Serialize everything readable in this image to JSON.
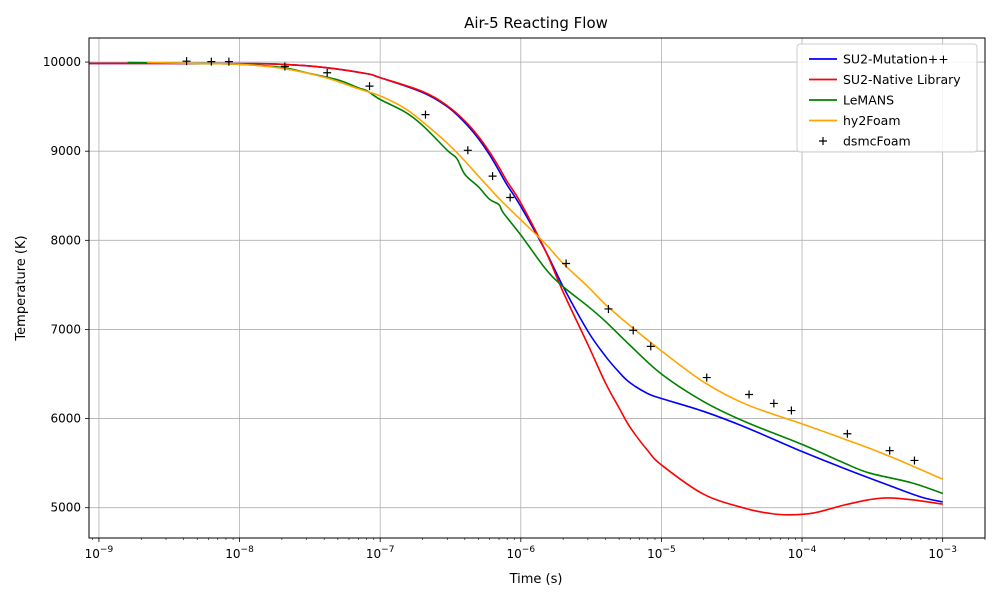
{
  "chart_data": {
    "type": "line",
    "title": "Air-5 Reacting Flow",
    "xlabel": "Time (s)",
    "ylabel": "Temperature (K)",
    "xscale": "log",
    "xlim": [
      8.5e-10,
      0.002
    ],
    "ylim": [
      4660,
      10270
    ],
    "x_ticks": [
      {
        "value": 1e-09,
        "base": "10",
        "exp": "−9"
      },
      {
        "value": 1e-08,
        "base": "10",
        "exp": "−8"
      },
      {
        "value": 1e-07,
        "base": "10",
        "exp": "−7"
      },
      {
        "value": 1e-06,
        "base": "10",
        "exp": "−6"
      },
      {
        "value": 1e-05,
        "base": "10",
        "exp": "−5"
      },
      {
        "value": 0.0001,
        "base": "10",
        "exp": "−4"
      },
      {
        "value": 0.001,
        "base": "10",
        "exp": "−3"
      }
    ],
    "y_ticks": [
      5000,
      6000,
      7000,
      8000,
      9000,
      10000
    ],
    "grid": true,
    "legend_position": "top-right",
    "series": [
      {
        "name": "SU2-Mutation++",
        "color": "#0000ff",
        "style": "line",
        "points": [
          [
            8.5e-10,
            9985
          ],
          [
            1e-08,
            9982
          ],
          [
            2e-08,
            9975
          ],
          [
            4e-08,
            9940
          ],
          [
            8e-08,
            9870
          ],
          [
            1e-07,
            9825
          ],
          [
            2e-07,
            9660
          ],
          [
            3e-07,
            9500
          ],
          [
            4e-07,
            9320
          ],
          [
            5e-07,
            9140
          ],
          [
            6e-07,
            8960
          ],
          [
            7e-07,
            8780
          ],
          [
            8e-07,
            8620
          ],
          [
            1e-06,
            8380
          ],
          [
            1.5e-06,
            7880
          ],
          [
            2e-06,
            7480
          ],
          [
            3e-06,
            6980
          ],
          [
            4e-06,
            6700
          ],
          [
            5e-06,
            6520
          ],
          [
            6e-06,
            6400
          ],
          [
            8e-06,
            6280
          ],
          [
            1e-05,
            6225
          ],
          [
            2e-05,
            6080
          ],
          [
            4e-05,
            5900
          ],
          [
            0.0001,
            5630
          ],
          [
            0.0002,
            5440
          ],
          [
            0.0004,
            5260
          ],
          [
            0.0007,
            5120
          ],
          [
            0.001,
            5065
          ]
        ]
      },
      {
        "name": "SU2-Native Library",
        "color": "#ff0000",
        "style": "line",
        "points": [
          [
            8.5e-10,
            9985
          ],
          [
            1e-08,
            9982
          ],
          [
            2e-08,
            9975
          ],
          [
            4e-08,
            9940
          ],
          [
            8e-08,
            9870
          ],
          [
            1e-07,
            9825
          ],
          [
            2e-07,
            9670
          ],
          [
            3e-07,
            9510
          ],
          [
            4e-07,
            9340
          ],
          [
            5e-07,
            9165
          ],
          [
            6e-07,
            8990
          ],
          [
            7e-07,
            8820
          ],
          [
            8e-07,
            8660
          ],
          [
            1e-06,
            8420
          ],
          [
            1.5e-06,
            7880
          ],
          [
            2e-06,
            7420
          ],
          [
            3e-06,
            6830
          ],
          [
            4e-06,
            6400
          ],
          [
            5e-06,
            6120
          ],
          [
            6e-06,
            5900
          ],
          [
            8e-06,
            5640
          ],
          [
            1e-05,
            5480
          ],
          [
            2e-05,
            5150
          ],
          [
            4e-05,
            4990
          ],
          [
            6e-05,
            4935
          ],
          [
            8e-05,
            4920
          ],
          [
            0.00012,
            4940
          ],
          [
            0.0002,
            5030
          ],
          [
            0.0003,
            5090
          ],
          [
            0.0004,
            5110
          ],
          [
            0.0006,
            5090
          ],
          [
            0.001,
            5040
          ]
        ]
      },
      {
        "name": "LeMANS",
        "color": "#008000",
        "style": "line",
        "points": [
          [
            1.6e-09,
            9995
          ],
          [
            5e-09,
            9985
          ],
          [
            1e-08,
            9975
          ],
          [
            2e-08,
            9940
          ],
          [
            3e-08,
            9880
          ],
          [
            5e-08,
            9800
          ],
          [
            7e-08,
            9710
          ],
          [
            8e-08,
            9680
          ],
          [
            1e-07,
            9580
          ],
          [
            1.5e-07,
            9440
          ],
          [
            2e-07,
            9290
          ],
          [
            3e-07,
            9010
          ],
          [
            3.5e-07,
            8920
          ],
          [
            4e-07,
            8740
          ],
          [
            5e-07,
            8600
          ],
          [
            6e-07,
            8460
          ],
          [
            7e-07,
            8400
          ],
          [
            7.5e-07,
            8310
          ],
          [
            1e-06,
            8060
          ],
          [
            1.5e-06,
            7680
          ],
          [
            2e-06,
            7480
          ],
          [
            3e-06,
            7260
          ],
          [
            4e-06,
            7090
          ],
          [
            6e-06,
            6820
          ],
          [
            1e-05,
            6500
          ],
          [
            2e-05,
            6190
          ],
          [
            4e-05,
            5960
          ],
          [
            0.0001,
            5710
          ],
          [
            0.0002,
            5500
          ],
          [
            0.0003,
            5390
          ],
          [
            0.0006,
            5280
          ],
          [
            0.001,
            5160
          ]
        ]
      },
      {
        "name": "hy2Foam",
        "color": "#ffa500",
        "style": "line",
        "points": [
          [
            2.2e-09,
            9995
          ],
          [
            5e-09,
            9985
          ],
          [
            1e-08,
            9975
          ],
          [
            2e-08,
            9930
          ],
          [
            4e-08,
            9830
          ],
          [
            7e-08,
            9700
          ],
          [
            1e-07,
            9620
          ],
          [
            1.5e-07,
            9480
          ],
          [
            2e-07,
            9330
          ],
          [
            3e-07,
            9090
          ],
          [
            4e-07,
            8890
          ],
          [
            5e-07,
            8720
          ],
          [
            7e-07,
            8470
          ],
          [
            1e-06,
            8230
          ],
          [
            1.5e-06,
            7960
          ],
          [
            2e-06,
            7740
          ],
          [
            3e-06,
            7480
          ],
          [
            4e-06,
            7280
          ],
          [
            6e-06,
            7040
          ],
          [
            1e-05,
            6760
          ],
          [
            2e-05,
            6410
          ],
          [
            4e-05,
            6160
          ],
          [
            0.0001,
            5940
          ],
          [
            0.0002,
            5770
          ],
          [
            0.0004,
            5590
          ],
          [
            0.001,
            5320
          ]
        ]
      },
      {
        "name": "dsmcFoam",
        "color": "#000000",
        "style": "marker",
        "points": [
          [
            4.2e-09,
            10010
          ],
          [
            6.3e-09,
            10005
          ],
          [
            8.4e-09,
            10005
          ],
          [
            2.1e-08,
            9950
          ],
          [
            4.2e-08,
            9880
          ],
          [
            8.4e-08,
            9730
          ],
          [
            2.1e-07,
            9410
          ],
          [
            4.2e-07,
            9010
          ],
          [
            6.3e-07,
            8720
          ],
          [
            8.4e-07,
            8480
          ],
          [
            2.1e-06,
            7740
          ],
          [
            4.2e-06,
            7230
          ],
          [
            6.3e-06,
            6990
          ],
          [
            8.4e-06,
            6810
          ],
          [
            2.1e-05,
            6460
          ],
          [
            4.2e-05,
            6270
          ],
          [
            6.3e-05,
            6170
          ],
          [
            8.4e-05,
            6090
          ],
          [
            0.00021,
            5830
          ],
          [
            0.00042,
            5640
          ],
          [
            0.00063,
            5530
          ]
        ]
      }
    ]
  }
}
